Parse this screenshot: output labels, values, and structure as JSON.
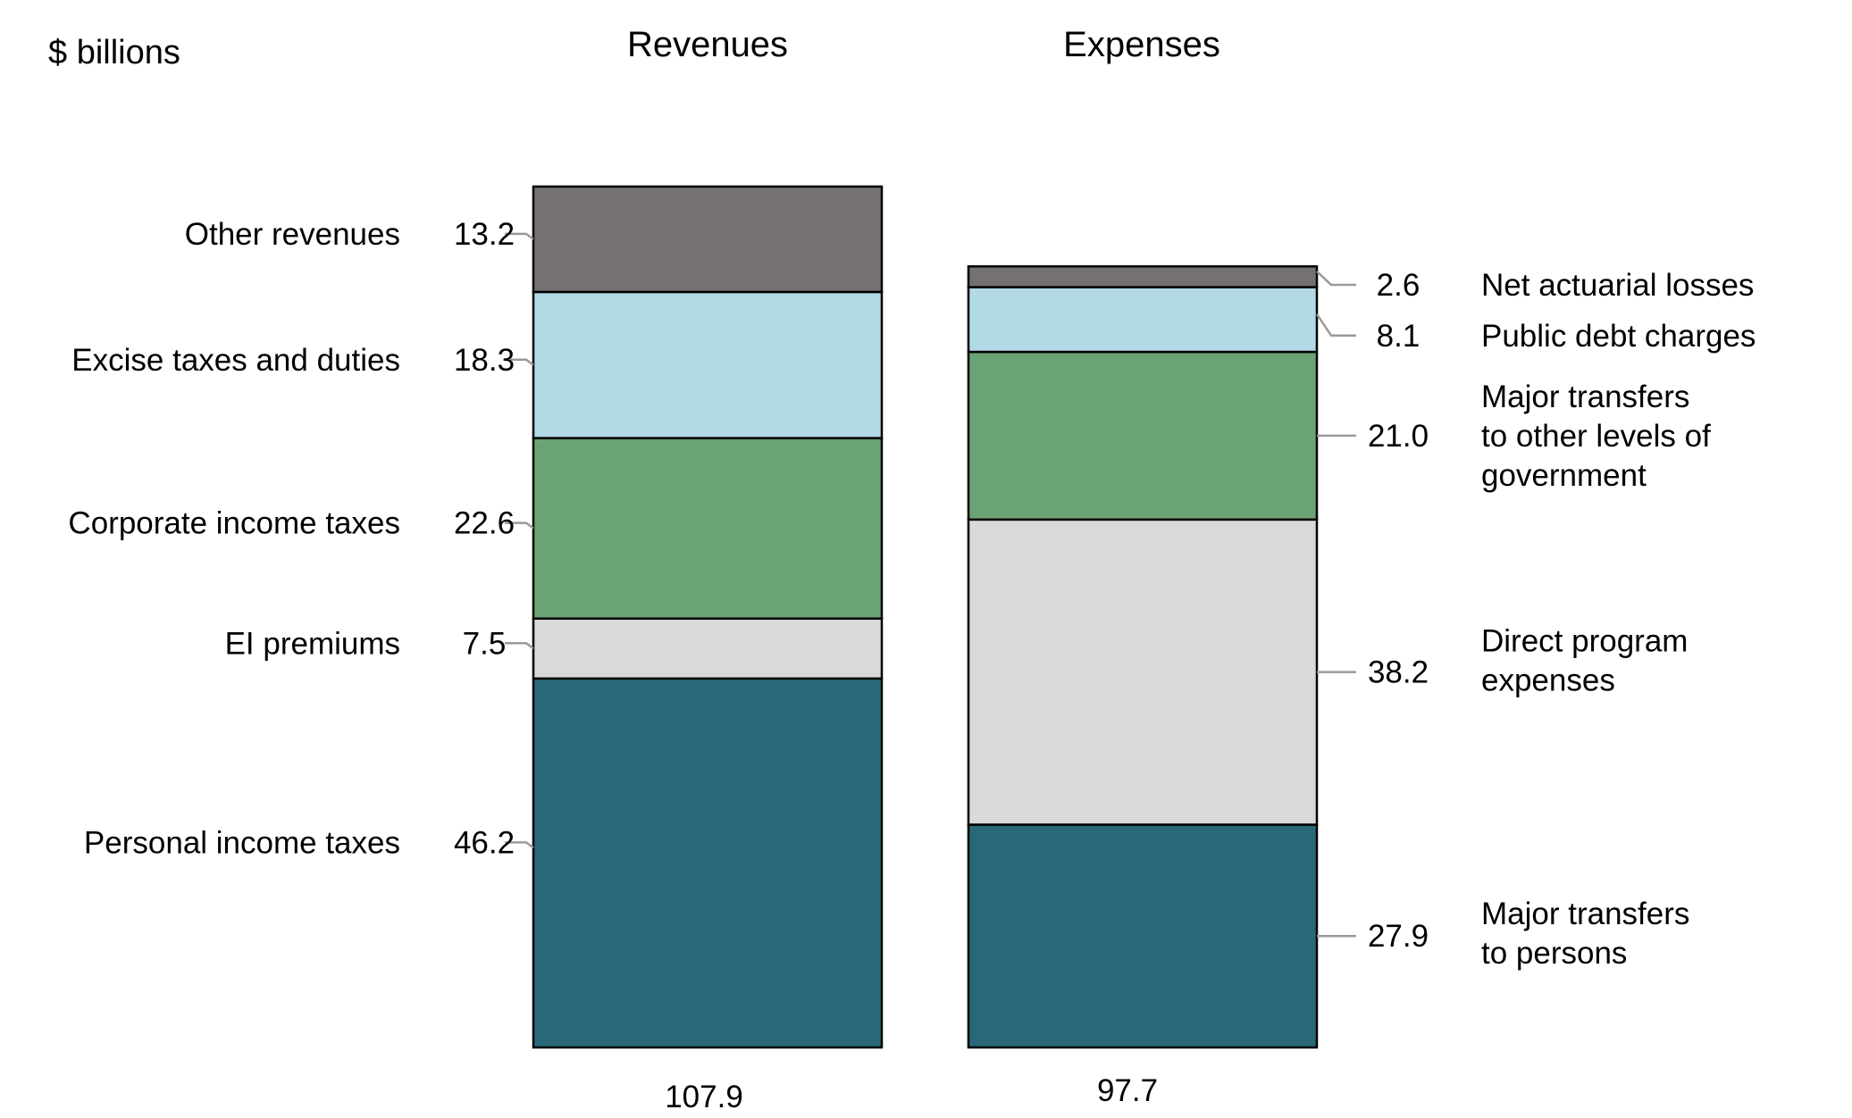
{
  "chart_data": {
    "type": "bar",
    "subtype": "stacked",
    "unit_label": "$ billions",
    "categories": [
      "Revenues",
      "Expenses"
    ],
    "colors": {
      "dark_teal": "#296878",
      "light_gray": "#d9d9d9",
      "green": "#6aa374",
      "light_blue": "#b1d9e6",
      "dark_gray": "#757170"
    },
    "series": [
      {
        "name": "Revenues",
        "total": "107.9",
        "segments": [
          {
            "name": "Personal income taxes",
            "lines": [
              "Personal income taxes"
            ],
            "value": 46.2,
            "label": "46.2",
            "color": "#296878"
          },
          {
            "name": "EI premiums",
            "lines": [
              "EI premiums"
            ],
            "value": 7.5,
            "label": "7.5",
            "color": "#d9d9d9"
          },
          {
            "name": "Corporate income taxes",
            "lines": [
              "Corporate income taxes"
            ],
            "value": 22.6,
            "label": "22.6",
            "color": "#6aa374"
          },
          {
            "name": "Excise taxes and duties",
            "lines": [
              "Excise taxes and duties"
            ],
            "value": 18.3,
            "label": "18.3",
            "color": "#b1d9e6"
          },
          {
            "name": "Other revenues",
            "lines": [
              "Other revenues"
            ],
            "value": 13.2,
            "label": "13.2",
            "color": "#757170"
          }
        ]
      },
      {
        "name": "Expenses",
        "total": "97.7",
        "segments": [
          {
            "name": "Major transfers to persons",
            "lines": [
              "Major transfers",
              "to persons"
            ],
            "value": 27.9,
            "label": "27.9",
            "color": "#296878"
          },
          {
            "name": "Direct program expenses",
            "lines": [
              "Direct program",
              "expenses"
            ],
            "value": 38.2,
            "label": "38.2",
            "color": "#d9d9d9"
          },
          {
            "name": "Major transfers to other levels of government",
            "lines": [
              "Major transfers",
              "to other levels of",
              "government"
            ],
            "value": 21.0,
            "label": "21.0",
            "color": "#6aa374"
          },
          {
            "name": "Public debt charges",
            "lines": [
              "Public debt charges"
            ],
            "value": 8.1,
            "label": "8.1",
            "color": "#b1d9e6"
          },
          {
            "name": "Net actuarial losses",
            "lines": [
              "Net actuarial losses"
            ],
            "value": 2.6,
            "label": "2.6",
            "color": "#757170"
          }
        ]
      }
    ],
    "ylim": [
      0,
      107.9
    ],
    "grid": false,
    "legend": "none"
  }
}
